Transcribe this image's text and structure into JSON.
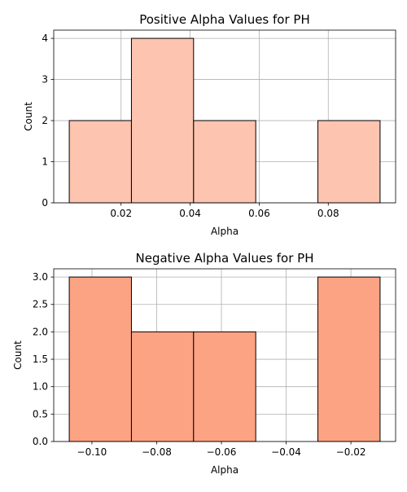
{
  "chart_data": [
    {
      "type": "bar",
      "title": "Positive Alpha Values for PH",
      "xlabel": "Alpha",
      "ylabel": "Count",
      "bin_edges": [
        0.005,
        0.023,
        0.041,
        0.059,
        0.077,
        0.095
      ],
      "values": [
        2,
        4,
        2,
        0,
        2
      ],
      "xlim": [
        0.0005,
        0.0995
      ],
      "ylim": [
        0,
        4.2
      ],
      "xticks": [
        0.02,
        0.04,
        0.06,
        0.08
      ],
      "xtick_labels": [
        "0.02",
        "0.04",
        "0.06",
        "0.08"
      ],
      "yticks": [
        0,
        1,
        2,
        3,
        4
      ],
      "ytick_labels": [
        "0",
        "1",
        "2",
        "3",
        "4"
      ],
      "bar_color": "#FDC4B0",
      "edge_color": "#000000",
      "grid": true
    },
    {
      "type": "bar",
      "title": "Negative Alpha Values for PH",
      "xlabel": "Alpha",
      "ylabel": "Count",
      "bin_edges": [
        -0.107,
        -0.0878,
        -0.0686,
        -0.0494,
        -0.0302,
        -0.011
      ],
      "values": [
        3,
        2,
        2,
        0,
        3
      ],
      "xlim": [
        -0.1118,
        -0.0062
      ],
      "ylim": [
        0,
        3.15
      ],
      "xticks": [
        -0.1,
        -0.08,
        -0.06,
        -0.04,
        -0.02
      ],
      "xtick_labels": [
        "−0.10",
        "−0.08",
        "−0.06",
        "−0.04",
        "−0.02"
      ],
      "yticks": [
        0,
        0.5,
        1.0,
        1.5,
        2.0,
        2.5,
        3.0
      ],
      "ytick_labels": [
        "0.0",
        "0.5",
        "1.0",
        "1.5",
        "2.0",
        "2.5",
        "3.0"
      ],
      "bar_color": "#FCA384",
      "edge_color": "#000000",
      "grid": true
    }
  ]
}
